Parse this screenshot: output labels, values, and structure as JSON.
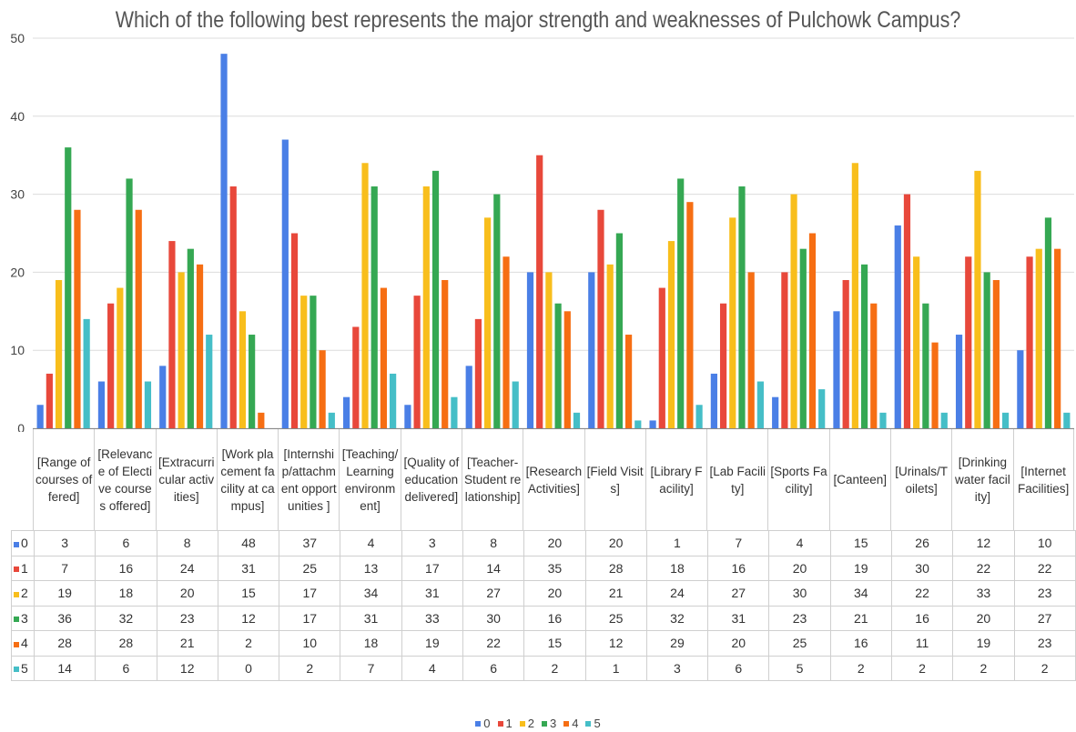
{
  "chart_data": {
    "type": "bar",
    "title": "Which of the following best represents the major strength and weaknesses of Pulchowk Campus?",
    "xlabel": "",
    "ylabel": "",
    "ylim": [
      0,
      50
    ],
    "yticks": [
      0,
      10,
      20,
      30,
      40,
      50
    ],
    "grid": true,
    "legend_position": "bottom",
    "categories": [
      "[Range of courses offered]",
      "[Relevance of Elective courses offered]",
      "[Extracurricular activities]",
      "[Work placement facility at campus]",
      "[Internship/attachment opportunities ]",
      "[Teaching/Learning environment]",
      "[Quality of education delivered]",
      "[Teacher-Student relationship]",
      "[Research Activities]",
      "[Field Visits]",
      "[Library Facility]",
      "[Lab Facility]",
      "[Sports Facility]",
      "[Canteen]",
      "[Urinals/Toilets]",
      "[Drinking water facility]",
      "[Internet Facilities]"
    ],
    "series": [
      {
        "name": "0",
        "color": "#4a7fe6",
        "values": [
          3,
          6,
          8,
          48,
          37,
          4,
          3,
          8,
          20,
          20,
          1,
          7,
          4,
          15,
          26,
          12,
          10
        ]
      },
      {
        "name": "1",
        "color": "#e8483b",
        "values": [
          7,
          16,
          24,
          31,
          25,
          13,
          17,
          14,
          35,
          28,
          18,
          16,
          20,
          19,
          30,
          22,
          22
        ]
      },
      {
        "name": "2",
        "color": "#f8be1c",
        "values": [
          19,
          18,
          20,
          15,
          17,
          34,
          31,
          27,
          20,
          21,
          24,
          27,
          30,
          34,
          22,
          33,
          23
        ]
      },
      {
        "name": "3",
        "color": "#35a853",
        "values": [
          36,
          32,
          23,
          12,
          17,
          31,
          33,
          30,
          16,
          25,
          32,
          31,
          23,
          21,
          16,
          20,
          27
        ]
      },
      {
        "name": "4",
        "color": "#f66e13",
        "values": [
          28,
          28,
          21,
          2,
          10,
          18,
          19,
          22,
          15,
          12,
          29,
          20,
          25,
          16,
          11,
          19,
          23
        ]
      },
      {
        "name": "5",
        "color": "#45bec7",
        "values": [
          14,
          6,
          12,
          0,
          2,
          7,
          4,
          6,
          2,
          1,
          3,
          6,
          5,
          2,
          2,
          2,
          2
        ]
      }
    ]
  }
}
